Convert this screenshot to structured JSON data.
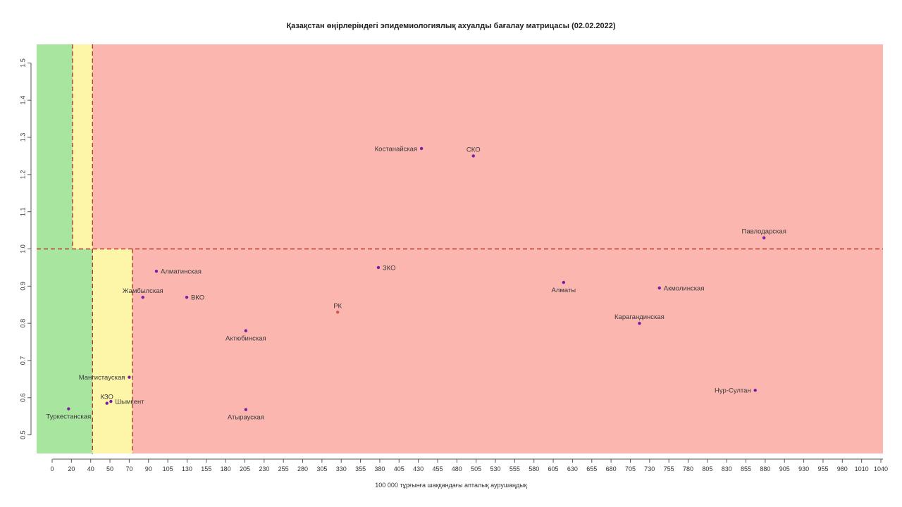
{
  "chart_data": {
    "type": "scatter",
    "title": "Қазақстан өңірлеріндегі эпидемиологиялық ахуалды бағалау матрицасы  (02.02.2022)",
    "xlabel": "100 000 тұрғынға шаққандағы апталық аурушаңдық",
    "ylabel": "",
    "xlim": [
      -20,
      1040
    ],
    "ylim": [
      0.45,
      1.55
    ],
    "x_ticks": [
      0,
      20,
      40,
      50,
      70,
      90,
      105,
      130,
      155,
      180,
      205,
      230,
      255,
      280,
      305,
      330,
      355,
      380,
      405,
      430,
      455,
      480,
      505,
      530,
      555,
      580,
      605,
      630,
      655,
      680,
      705,
      730,
      755,
      780,
      805,
      830,
      855,
      880,
      905,
      930,
      955,
      980,
      1010,
      1040
    ],
    "y_ticks": [
      0.5,
      0.6,
      0.7,
      0.8,
      0.9,
      1.0,
      1.1,
      1.2,
      1.3,
      1.4,
      1.5
    ],
    "threshold_y": 1.0,
    "zones": [
      {
        "name": "green",
        "color": "#a8e6a0",
        "x_from": -20,
        "x_to_upper": 25,
        "x_to_lower": 50
      },
      {
        "name": "yellow",
        "color": "#fdf6a8",
        "x_to_upper": 50,
        "x_to_lower": 100
      },
      {
        "name": "red",
        "color": "#fcb6b0"
      }
    ],
    "dashed_lines": {
      "color": "#b03a2e",
      "x_upper": 25,
      "x_lower": 100,
      "x_mid": 50
    },
    "point_color": "#7a1fa2",
    "rk_color": "#d9534f",
    "points": [
      {
        "label": "Костанайская",
        "x": 462,
        "y": 1.27,
        "label_side": "left"
      },
      {
        "label": "СКО",
        "x": 527,
        "y": 1.25,
        "label_side": "above"
      },
      {
        "label": "Павлодарская",
        "x": 891,
        "y": 1.03,
        "label_side": "above"
      },
      {
        "label": "Алматинская",
        "x": 130,
        "y": 0.94,
        "label_side": "right"
      },
      {
        "label": "ЗКО",
        "x": 408,
        "y": 0.95,
        "label_side": "right"
      },
      {
        "label": "Алматы",
        "x": 640,
        "y": 0.91,
        "label_side": "below"
      },
      {
        "label": "Акмолинская",
        "x": 760,
        "y": 0.895,
        "label_side": "right"
      },
      {
        "label": "Жамбылская",
        "x": 113,
        "y": 0.87,
        "label_side": "above"
      },
      {
        "label": "ВКО",
        "x": 168,
        "y": 0.87,
        "label_side": "right"
      },
      {
        "label": "РК",
        "x": 357,
        "y": 0.83,
        "label_side": "above",
        "rk": true
      },
      {
        "label": "Карагандинская",
        "x": 735,
        "y": 0.8,
        "label_side": "above"
      },
      {
        "label": "Актюбинская",
        "x": 242,
        "y": 0.78,
        "label_side": "below"
      },
      {
        "label": "Мангистауская",
        "x": 96,
        "y": 0.655,
        "label_side": "left"
      },
      {
        "label": "Нур-Султан",
        "x": 880,
        "y": 0.62,
        "label_side": "left"
      },
      {
        "label": "КЗО",
        "x": 68,
        "y": 0.585,
        "label_side": "above"
      },
      {
        "label": "Шымкент",
        "x": 73,
        "y": 0.59,
        "label_side": "right"
      },
      {
        "label": "Туркестанская",
        "x": 20,
        "y": 0.57,
        "label_side": "below"
      },
      {
        "label": "Атырауская",
        "x": 242,
        "y": 0.568,
        "label_side": "below"
      }
    ]
  }
}
